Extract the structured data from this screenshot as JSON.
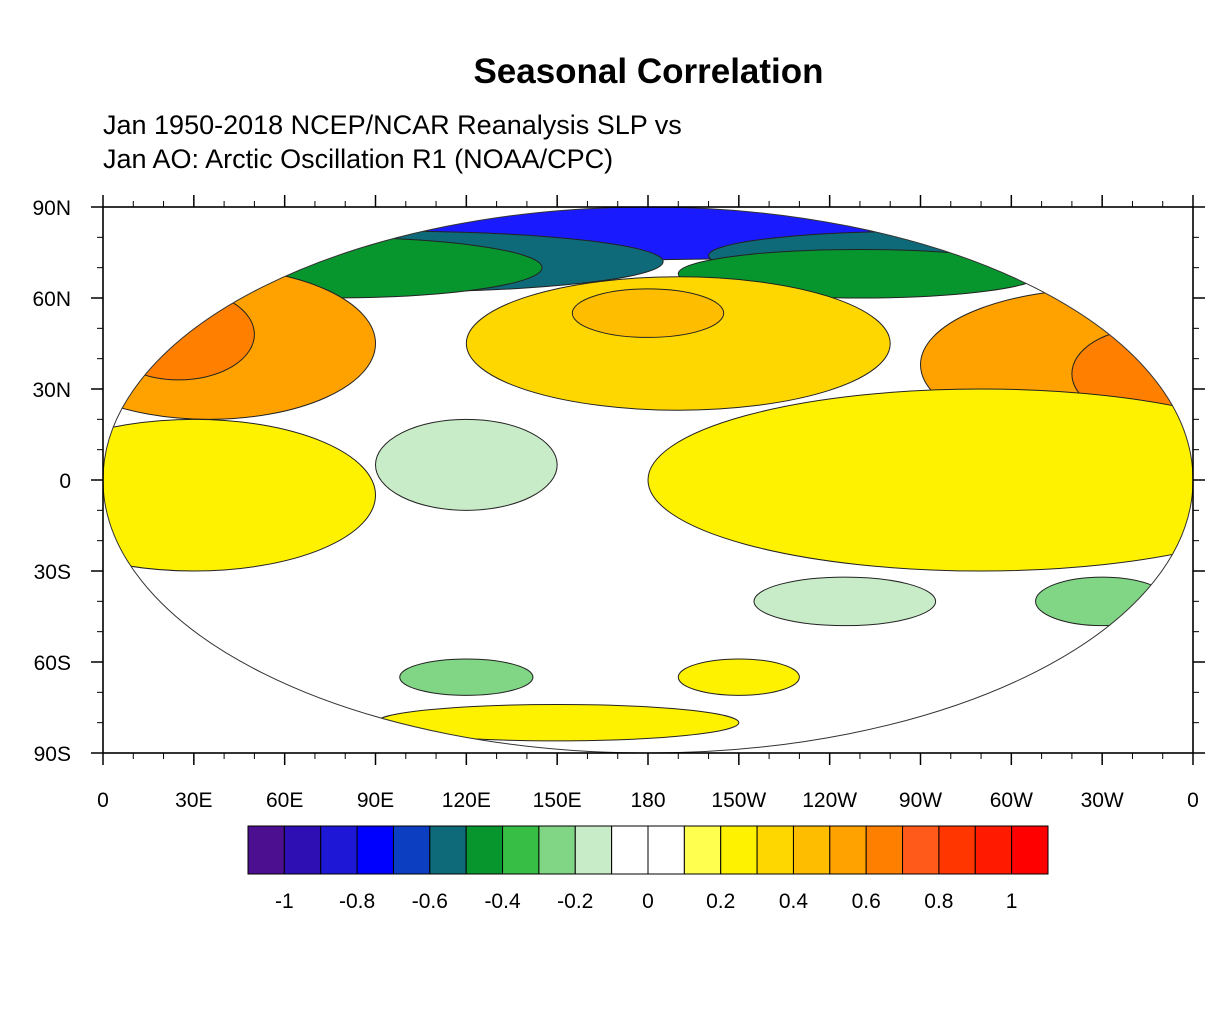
{
  "title": "Seasonal Correlation",
  "subtitle_line1": "Jan 1950-2018 NCEP/NCAR Reanalysis SLP vs",
  "subtitle_line2": "Jan AO: Arctic Oscillation R1 (NOAA/CPC)",
  "lat_labels": [
    "90N",
    "60N",
    "30N",
    "0",
    "30S",
    "60S",
    "90S"
  ],
  "lat_values": [
    90,
    60,
    30,
    0,
    -30,
    -60,
    -90
  ],
  "lon_labels": [
    "0",
    "30E",
    "60E",
    "90E",
    "120E",
    "150E",
    "180",
    "150W",
    "120W",
    "90W",
    "60W",
    "30W",
    "0"
  ],
  "lon_values": [
    0,
    30,
    60,
    90,
    120,
    150,
    180,
    210,
    240,
    270,
    300,
    330,
    360
  ],
  "colorbar": {
    "tick_labels": [
      "-1",
      "-0.8",
      "-0.6",
      "-0.4",
      "-0.2",
      "0",
      "0.2",
      "0.4",
      "0.6",
      "0.8",
      "1"
    ],
    "colors": [
      "#4b0f8f",
      "#2e0fb3",
      "#1e17d6",
      "#0000ff",
      "#0b3ec0",
      "#0e6a78",
      "#07962e",
      "#37be45",
      "#80d684",
      "#c9ecc8",
      "#ffffff",
      "#ffffff",
      "#ffff50",
      "#fff200",
      "#ffd700",
      "#ffbd00",
      "#ffa200",
      "#ff8000",
      "#ff5a1a",
      "#ff3600",
      "#ff1a00",
      "#ff0000"
    ]
  },
  "regions": [
    {
      "name": "arctic-band-blue",
      "color": "#1a1aff",
      "lon": 90,
      "lat": 84,
      "w": 300,
      "h": 12
    },
    {
      "name": "arctic-band-teal-left",
      "color": "#0e6a78",
      "lon": 95,
      "lat": 72,
      "w": 90,
      "h": 10
    },
    {
      "name": "arctic-band-green-left",
      "color": "#07962e",
      "lon": 75,
      "lat": 70,
      "w": 70,
      "h": 10
    },
    {
      "name": "arctic-band-teal-right",
      "color": "#0e6a78",
      "lon": 270,
      "lat": 74,
      "w": 70,
      "h": 8
    },
    {
      "name": "arctic-band-green-right",
      "color": "#07962e",
      "lon": 250,
      "lat": 68,
      "w": 60,
      "h": 8
    },
    {
      "name": "europe-positive",
      "color": "#ffa200",
      "lon": 35,
      "lat": 45,
      "w": 55,
      "h": 25
    },
    {
      "name": "europe-max",
      "color": "#ff8000",
      "lon": 25,
      "lat": 48,
      "w": 25,
      "h": 15
    },
    {
      "name": "north-pacific-positive",
      "color": "#ffd700",
      "lon": 190,
      "lat": 45,
      "w": 70,
      "h": 22
    },
    {
      "name": "north-pacific-max",
      "color": "#ffbd00",
      "lon": 180,
      "lat": 55,
      "w": 25,
      "h": 8
    },
    {
      "name": "north-atlantic-positive",
      "color": "#ffa200",
      "lon": 330,
      "lat": 38,
      "w": 60,
      "h": 25
    },
    {
      "name": "north-atlantic-max",
      "color": "#ff8000",
      "lon": 345,
      "lat": 35,
      "w": 25,
      "h": 15
    },
    {
      "name": "tropical-atlantic-yellow",
      "color": "#fff200",
      "lon": 290,
      "lat": 0,
      "w": 110,
      "h": 30
    },
    {
      "name": "tropical-indian-yellow",
      "color": "#fff200",
      "lon": 30,
      "lat": -5,
      "w": 60,
      "h": 25
    },
    {
      "name": "west-pacific-green",
      "color": "#c9ecc8",
      "lon": 120,
      "lat": 5,
      "w": 30,
      "h": 15
    },
    {
      "name": "south-pacific-green",
      "color": "#c9ecc8",
      "lon": 245,
      "lat": -40,
      "w": 30,
      "h": 8
    },
    {
      "name": "south-atlantic-green",
      "color": "#80d684",
      "lon": 330,
      "lat": -40,
      "w": 22,
      "h": 8
    },
    {
      "name": "southern-indian-green",
      "color": "#80d684",
      "lon": 120,
      "lat": -65,
      "w": 22,
      "h": 6
    },
    {
      "name": "southern-pacific-yellow",
      "color": "#fff200",
      "lon": 210,
      "lat": -65,
      "w": 20,
      "h": 6
    },
    {
      "name": "antarctic-yellow",
      "color": "#fff200",
      "lon": 150,
      "lat": -80,
      "w": 60,
      "h": 6
    }
  ]
}
